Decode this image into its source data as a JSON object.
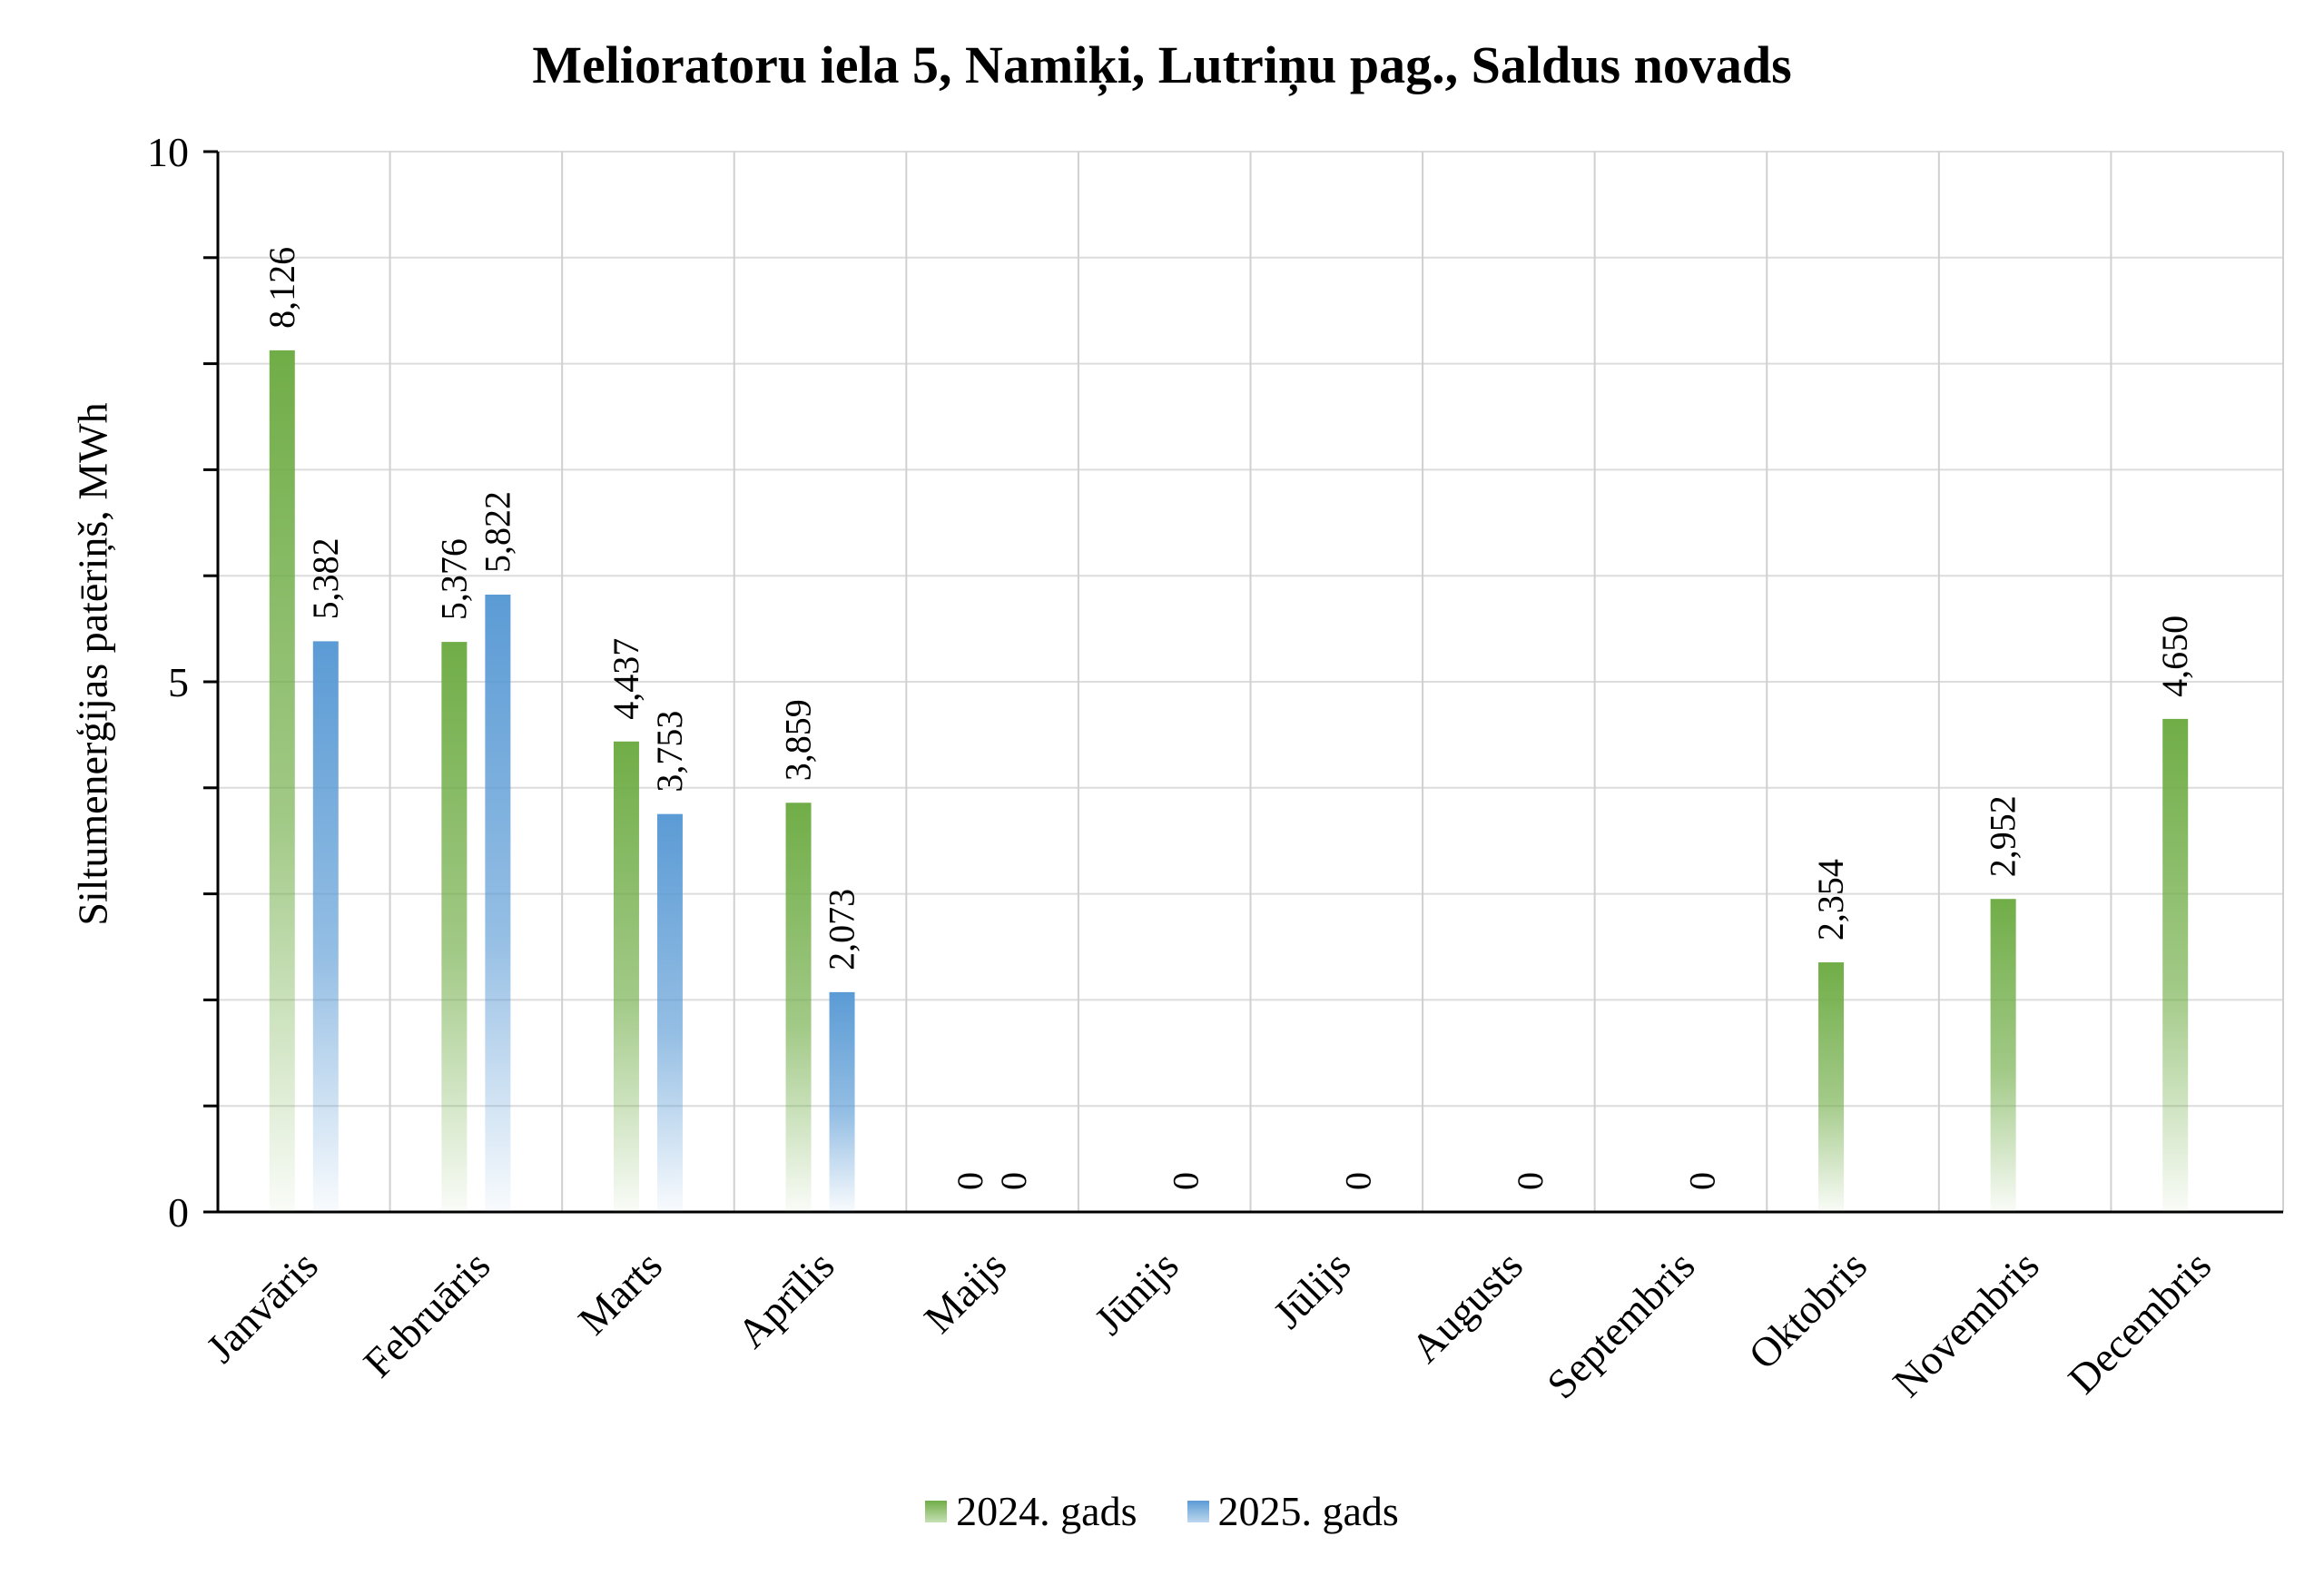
{
  "chart_data": {
    "type": "bar",
    "title": "Melioratoru iela 5, Namiķi, Lutriņu pag., Saldus novads",
    "xlabel": "",
    "ylabel": "Siltumenerģijas patēriņš, MWh",
    "ylim": [
      0,
      10
    ],
    "yticks": [
      "0",
      "5",
      "10"
    ],
    "categories": [
      "Janvāris",
      "Februāris",
      "Marts",
      "Aprīlis",
      "Maijs",
      "Jūnijs",
      "Jūlijs",
      "Augusts",
      "Septembris",
      "Oktobris",
      "Novembris",
      "Decembris"
    ],
    "series": [
      {
        "name": "2024. gads",
        "color": "#70ad47",
        "values": [
          8.126,
          5.376,
          4.437,
          3.859,
          0,
          null,
          null,
          null,
          null,
          2.354,
          2.952,
          4.65
        ],
        "labels": [
          "8,126",
          "5,376",
          "4,437",
          "3,859",
          "0",
          "",
          "",
          "",
          "",
          "2,354",
          "2,952",
          "4,650"
        ]
      },
      {
        "name": "2025. gads",
        "color": "#5b9bd5",
        "values": [
          5.382,
          5.822,
          3.753,
          2.073,
          0,
          0,
          0,
          0,
          0,
          null,
          null,
          null
        ],
        "labels": [
          "5,382",
          "5,822",
          "3,753",
          "2,073",
          "0",
          "0",
          "0",
          "0",
          "0",
          "",
          "",
          ""
        ]
      }
    ],
    "grid": true,
    "legend_position": "bottom"
  }
}
